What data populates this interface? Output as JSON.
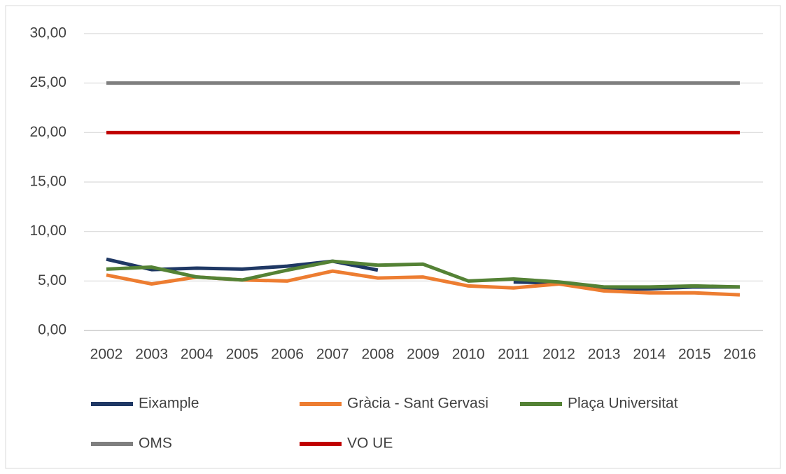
{
  "chart_data": {
    "type": "line",
    "categories": [
      "2002",
      "2003",
      "2004",
      "2005",
      "2006",
      "2007",
      "2008",
      "2009",
      "2010",
      "2011",
      "2012",
      "2013",
      "2014",
      "2015",
      "2016"
    ],
    "series": [
      {
        "name": "Eixample",
        "color": "#1f3864",
        "values": [
          7.2,
          6.15,
          6.3,
          6.2,
          6.5,
          7.0,
          6.1,
          null,
          null,
          4.9,
          4.8,
          4.2,
          4.2,
          4.4,
          4.4
        ]
      },
      {
        "name": "Gràcia - Sant Gervasi",
        "color": "#ed7d31",
        "values": [
          5.6,
          4.7,
          5.4,
          5.1,
          5.0,
          6.0,
          5.3,
          5.4,
          4.5,
          4.3,
          4.7,
          4.0,
          3.8,
          3.8,
          3.6
        ]
      },
      {
        "name": "Plaça Universitat",
        "color": "#548235",
        "values": [
          6.2,
          6.4,
          5.4,
          5.1,
          6.1,
          7.0,
          6.6,
          6.7,
          5.0,
          5.2,
          4.9,
          4.4,
          4.4,
          4.5,
          4.4
        ]
      },
      {
        "name": "OMS",
        "color": "#7f7f7f",
        "values": [
          25,
          25,
          25,
          25,
          25,
          25,
          25,
          25,
          25,
          25,
          25,
          25,
          25,
          25,
          25
        ]
      },
      {
        "name": "VO UE",
        "color": "#c00000",
        "values": [
          20,
          20,
          20,
          20,
          20,
          20,
          20,
          20,
          20,
          20,
          20,
          20,
          20,
          20,
          20
        ]
      }
    ],
    "ylim": [
      0,
      30
    ],
    "yticks": [
      {
        "value": 0,
        "label": "0,00"
      },
      {
        "value": 5,
        "label": "5,00"
      },
      {
        "value": 10,
        "label": "10,00"
      },
      {
        "value": 15,
        "label": "15,00"
      },
      {
        "value": 20,
        "label": "20,00"
      },
      {
        "value": 25,
        "label": "25,00"
      },
      {
        "value": 30,
        "label": "30,00"
      }
    ],
    "grid": true
  }
}
